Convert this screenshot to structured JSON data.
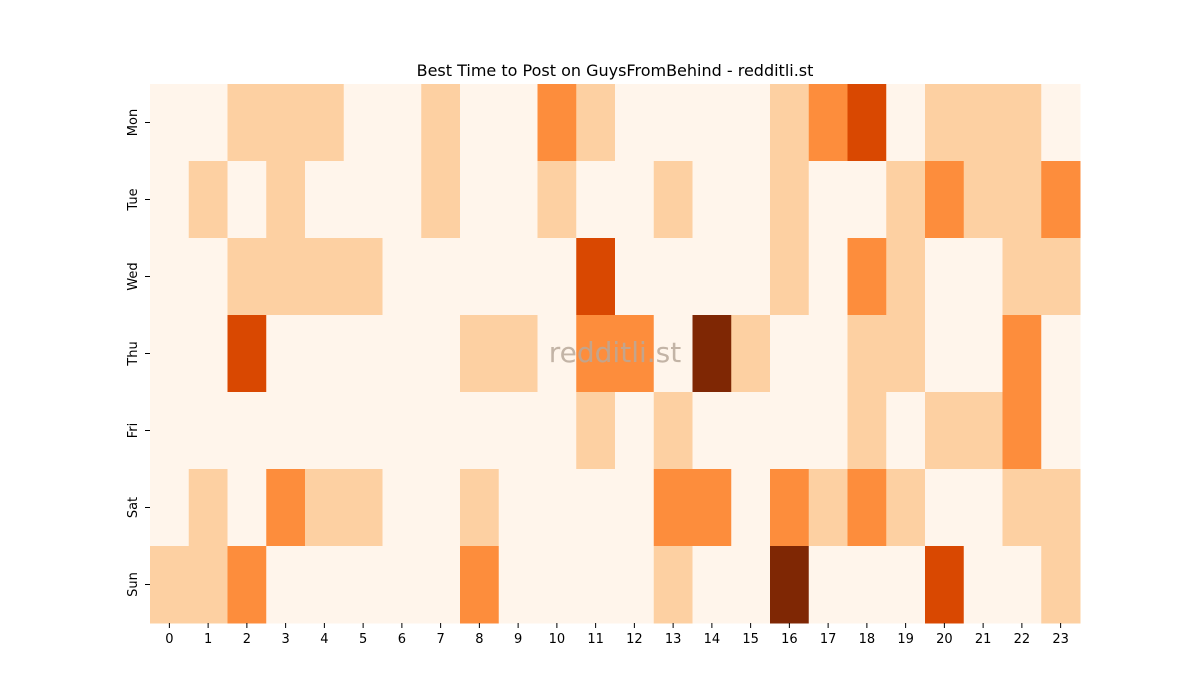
{
  "chart_data": {
    "type": "heatmap",
    "title": "Best Time to Post on GuysFromBehind - redditli.st",
    "watermark": "redditli.st",
    "x": [
      "0",
      "1",
      "2",
      "3",
      "4",
      "5",
      "6",
      "7",
      "8",
      "9",
      "10",
      "11",
      "12",
      "13",
      "14",
      "15",
      "16",
      "17",
      "18",
      "19",
      "20",
      "21",
      "22",
      "23"
    ],
    "y": [
      "Mon",
      "Tue",
      "Wed",
      "Thu",
      "Fri",
      "Sat",
      "Sun"
    ],
    "values": [
      [
        0,
        0,
        1,
        1,
        1,
        0,
        0,
        1,
        0,
        0,
        2,
        1,
        0,
        0,
        0,
        0,
        1,
        2,
        3,
        0,
        1,
        1,
        1,
        0
      ],
      [
        0,
        1,
        0,
        1,
        0,
        0,
        0,
        1,
        0,
        0,
        1,
        0,
        0,
        1,
        0,
        0,
        1,
        0,
        0,
        1,
        2,
        1,
        1,
        2
      ],
      [
        0,
        0,
        1,
        1,
        1,
        1,
        0,
        0,
        0,
        0,
        0,
        3,
        0,
        0,
        0,
        0,
        1,
        0,
        2,
        1,
        0,
        0,
        1,
        1
      ],
      [
        0,
        0,
        3,
        0,
        0,
        0,
        0,
        0,
        1,
        1,
        0,
        2,
        2,
        0,
        4,
        1,
        0,
        0,
        1,
        1,
        0,
        0,
        2,
        0
      ],
      [
        0,
        0,
        0,
        0,
        0,
        0,
        0,
        0,
        0,
        0,
        0,
        1,
        0,
        1,
        0,
        0,
        0,
        0,
        1,
        0,
        1,
        1,
        2,
        0
      ],
      [
        0,
        1,
        0,
        2,
        1,
        1,
        0,
        0,
        1,
        0,
        0,
        0,
        0,
        2,
        2,
        0,
        2,
        1,
        2,
        1,
        0,
        0,
        1,
        1
      ],
      [
        1,
        1,
        2,
        0,
        0,
        0,
        0,
        0,
        2,
        0,
        0,
        0,
        0,
        1,
        0,
        0,
        4,
        0,
        0,
        0,
        3,
        0,
        0,
        1
      ]
    ],
    "colorscale": [
      "#fff5eb",
      "#fdd0a2",
      "#fd8d3c",
      "#d94801",
      "#7f2704"
    ],
    "colorbar": false,
    "grid": false
  }
}
